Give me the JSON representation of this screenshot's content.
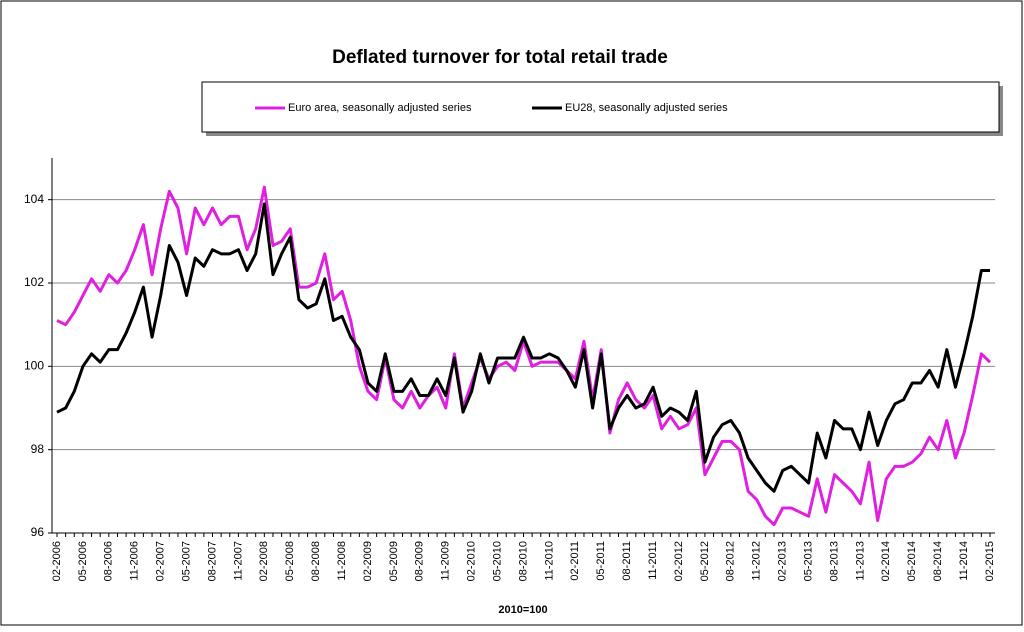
{
  "chart_data": {
    "type": "line",
    "title": "Deflated turnover for total retail trade",
    "x_label": "2010=100",
    "categories": [
      "02-2006",
      null,
      null,
      "05-2006",
      null,
      null,
      "08-2006",
      null,
      null,
      "11-2006",
      null,
      null,
      "02-2007",
      null,
      null,
      "05-2007",
      null,
      null,
      "08-2007",
      null,
      null,
      "11-2007",
      null,
      null,
      "02-2008",
      null,
      null,
      "05-2008",
      null,
      null,
      "08-2008",
      null,
      null,
      "11-2008",
      null,
      null,
      "02-2009",
      null,
      null,
      "05-2009",
      null,
      null,
      "08-2009",
      null,
      null,
      "11-2009",
      null,
      null,
      "02-2010",
      null,
      null,
      "05-2010",
      null,
      null,
      "08-2010",
      null,
      null,
      "11-2010",
      null,
      null,
      "02-2011",
      null,
      null,
      "05-2011",
      null,
      null,
      "08-2011",
      null,
      null,
      "11-2011",
      null,
      null,
      "02-2012",
      null,
      null,
      "05-2012",
      null,
      null,
      "08-2012",
      null,
      null,
      "11-2012",
      null,
      null,
      "02-2013",
      null,
      null,
      "05-2013",
      null,
      null,
      "08-2013",
      null,
      null,
      "11-2013",
      null,
      null,
      "02-2014",
      null,
      null,
      "05-2014",
      null,
      null,
      "08-2014",
      null,
      null,
      "11-2014",
      null,
      null,
      "02-2015"
    ],
    "series": [
      {
        "name": "Euro area, seasonally adjusted series",
        "color": "#e020e0",
        "values": [
          101.1,
          101.0,
          101.3,
          101.7,
          102.1,
          101.8,
          102.2,
          102.0,
          102.3,
          102.8,
          103.4,
          102.2,
          103.3,
          104.2,
          103.8,
          102.7,
          103.8,
          103.4,
          103.8,
          103.4,
          103.6,
          103.6,
          102.8,
          103.3,
          104.3,
          102.9,
          103.0,
          103.3,
          101.9,
          101.9,
          102.0,
          102.7,
          101.6,
          101.8,
          101.1,
          100.0,
          99.4,
          99.2,
          100.2,
          99.2,
          99.0,
          99.4,
          99.0,
          99.3,
          99.5,
          99.0,
          100.3,
          99.0,
          99.6,
          100.2,
          99.7,
          100.0,
          100.1,
          99.9,
          100.6,
          100.0,
          100.1,
          100.1,
          100.1,
          99.9,
          99.7,
          100.6,
          99.2,
          100.4,
          98.4,
          99.2,
          99.6,
          99.2,
          99.0,
          99.3,
          98.5,
          98.8,
          98.5,
          98.6,
          99.0,
          97.4,
          97.8,
          98.2,
          98.2,
          98.0,
          97.0,
          96.8,
          96.4,
          96.2,
          96.6,
          96.6,
          96.5,
          96.4,
          97.3,
          96.5,
          97.4,
          97.2,
          97.0,
          96.7,
          97.7,
          96.3,
          97.3,
          97.6,
          97.6,
          97.7,
          97.9,
          98.3,
          98.0,
          98.7,
          97.8,
          98.4,
          99.3,
          100.3,
          100.1
        ]
      },
      {
        "name": "EU28, seasonally adjusted series",
        "color": "#000000",
        "values": [
          98.9,
          99.0,
          99.4,
          100.0,
          100.3,
          100.1,
          100.4,
          100.4,
          100.8,
          101.3,
          101.9,
          100.7,
          101.7,
          102.9,
          102.5,
          101.7,
          102.6,
          102.4,
          102.8,
          102.7,
          102.7,
          102.8,
          102.3,
          102.7,
          103.9,
          102.2,
          102.7,
          103.1,
          101.6,
          101.4,
          101.5,
          102.1,
          101.1,
          101.2,
          100.7,
          100.4,
          99.6,
          99.4,
          100.3,
          99.4,
          99.4,
          99.7,
          99.3,
          99.3,
          99.7,
          99.3,
          100.2,
          98.9,
          99.4,
          100.3,
          99.6,
          100.2,
          100.2,
          100.2,
          100.7,
          100.2,
          100.2,
          100.3,
          100.2,
          99.9,
          99.5,
          100.4,
          99.0,
          100.3,
          98.5,
          99.0,
          99.3,
          99.0,
          99.1,
          99.5,
          98.8,
          99.0,
          98.9,
          98.7,
          99.4,
          97.7,
          98.3,
          98.6,
          98.7,
          98.4,
          97.8,
          97.5,
          97.2,
          97.0,
          97.5,
          97.6,
          97.4,
          97.2,
          98.4,
          97.8,
          98.7,
          98.5,
          98.5,
          98.0,
          98.9,
          98.1,
          98.7,
          99.1,
          99.2,
          99.6,
          99.6,
          99.9,
          99.5,
          100.4,
          99.5,
          100.3,
          101.2,
          102.3,
          102.3
        ]
      }
    ],
    "ylim": [
      96,
      105
    ],
    "yticks": [
      96,
      98,
      100,
      102,
      104
    ],
    "grid": true
  }
}
